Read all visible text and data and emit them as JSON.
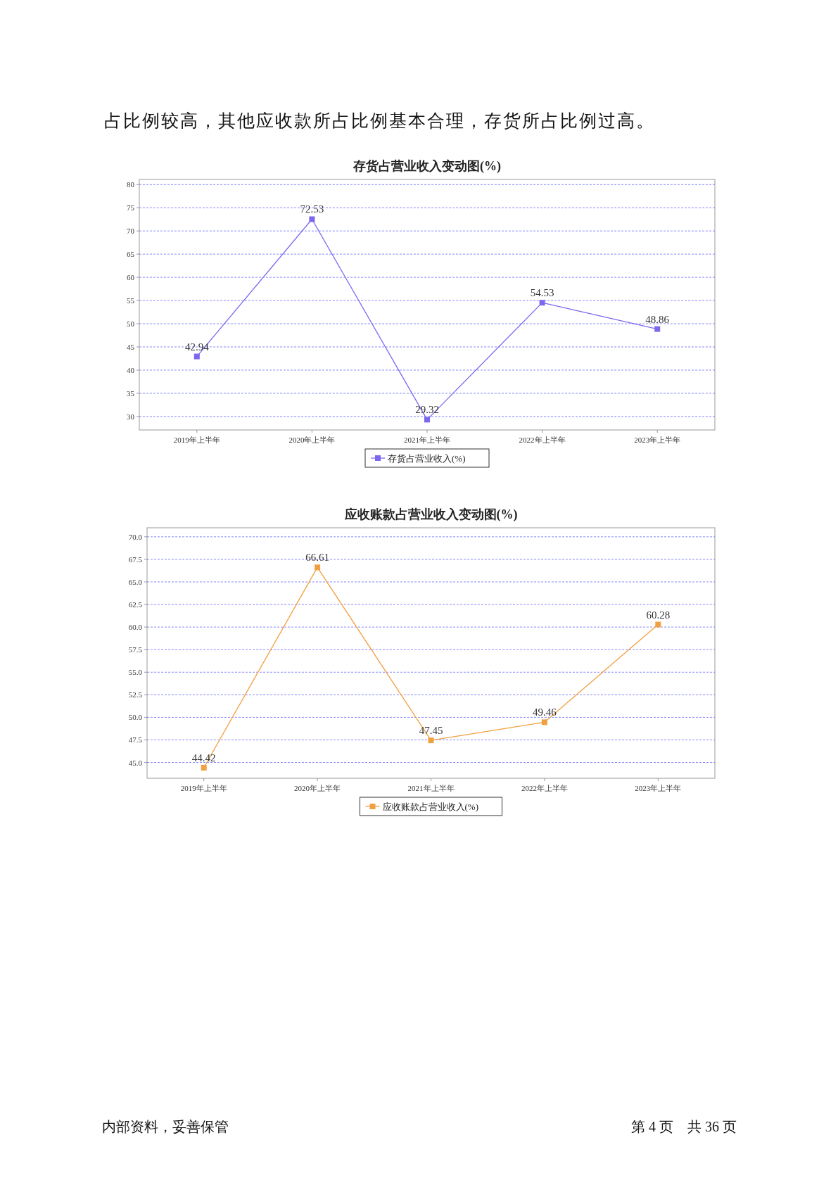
{
  "chart_data": [
    {
      "type": "line",
      "title": "存货占营业收入变动图(%)",
      "annotations": [
        "占比例较高，其他应收款所占比例基本合理，存货所占比例过高。"
      ],
      "categories": [
        "2019年上半年",
        "2020年上半年",
        "2021年上半年",
        "2022年上半年",
        "2023年上半年"
      ],
      "series": [
        {
          "name": "存货占营业收入(%)",
          "color": "#7b68ee",
          "values": [
            42.94,
            72.53,
            29.32,
            54.53,
            48.86
          ]
        }
      ],
      "ylim": [
        27.1,
        81.1
      ],
      "yticks": [
        30,
        35,
        40,
        45,
        50,
        55,
        60,
        65,
        70,
        75,
        80
      ],
      "grid": "y",
      "legend": "bottom",
      "marker": "square",
      "line_style": "solid",
      "data_labels": true
    },
    {
      "type": "line",
      "title": "应收账款占营业收入变动图(%)",
      "annotations": [
        "内部资料，妥善保管",
        "第 4 页　共 36 页"
      ],
      "categories": [
        "2019年上半年",
        "2020年上半年",
        "2021年上半年",
        "2022年上半年",
        "2023年上半年"
      ],
      "series": [
        {
          "name": "应收账款占营业收入(%)",
          "color": "#f0a040",
          "values": [
            44.42,
            66.61,
            47.45,
            49.46,
            60.28
          ]
        }
      ],
      "ylim": [
        43.25,
        71.0
      ],
      "yticks": [
        {
          "value": 45,
          "label": "45.0"
        },
        {
          "value": 47.5,
          "label": "47.5"
        },
        {
          "value": 50,
          "label": "50.0"
        },
        {
          "value": 52.5,
          "label": "52.5"
        },
        {
          "value": 55,
          "label": "55.0"
        },
        {
          "value": 57.5,
          "label": "57.5"
        },
        {
          "value": 60,
          "label": "60.0"
        },
        {
          "value": 62.5,
          "label": "62.5"
        },
        {
          "value": 65,
          "label": "65.0"
        },
        {
          "value": 67.5,
          "label": "67.5"
        },
        {
          "value": 70,
          "label": "70.0"
        }
      ],
      "grid": "y",
      "legend": "bottom",
      "marker": "square",
      "line_style": "solid",
      "data_labels": true
    }
  ]
}
